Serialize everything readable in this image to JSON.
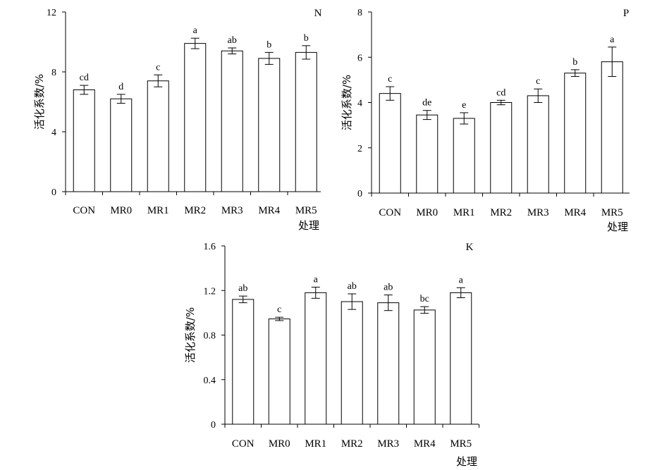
{
  "chart_data": [
    {
      "type": "bar",
      "panel_label": "N",
      "categories": [
        "CON",
        "MR0",
        "MR1",
        "MR2",
        "MR3",
        "MR4",
        "MR5"
      ],
      "values": [
        6.8,
        6.2,
        7.4,
        9.9,
        9.4,
        8.9,
        9.3
      ],
      "errors": [
        0.3,
        0.3,
        0.4,
        0.35,
        0.2,
        0.4,
        0.45
      ],
      "significance": [
        "cd",
        "d",
        "c",
        "a",
        "ab",
        "b",
        "b"
      ],
      "ylabel": "活化系数/%",
      "xlabel": "处理",
      "ylim": [
        0,
        12
      ],
      "yticks": [
        0,
        4,
        8,
        12
      ],
      "grid": false
    },
    {
      "type": "bar",
      "panel_label": "P",
      "categories": [
        "CON",
        "MR0",
        "MR1",
        "MR2",
        "MR3",
        "MR4",
        "MR5"
      ],
      "values": [
        4.4,
        3.45,
        3.3,
        4.0,
        4.3,
        5.3,
        5.8
      ],
      "errors": [
        0.3,
        0.2,
        0.25,
        0.1,
        0.3,
        0.15,
        0.65
      ],
      "significance": [
        "c",
        "de",
        "e",
        "cd",
        "c",
        "b",
        "a"
      ],
      "ylabel": "活化系数/%",
      "xlabel": "处理",
      "ylim": [
        0,
        8
      ],
      "yticks": [
        0,
        2,
        4,
        6,
        8
      ],
      "grid": false
    },
    {
      "type": "bar",
      "panel_label": "K",
      "categories": [
        "CON",
        "MR0",
        "MR1",
        "MR2",
        "MR3",
        "MR4",
        "MR5"
      ],
      "values": [
        1.12,
        0.945,
        1.18,
        1.1,
        1.09,
        1.025,
        1.18
      ],
      "errors": [
        0.03,
        0.015,
        0.05,
        0.07,
        0.07,
        0.03,
        0.045
      ],
      "significance": [
        "ab",
        "c",
        "a",
        "ab",
        "ab",
        "bc",
        "a"
      ],
      "ylabel": "活化系数/%",
      "xlabel": "处理",
      "ylim": [
        0,
        1.6
      ],
      "yticks": [
        "0",
        "0.4",
        "0.8",
        "1.2",
        "1.6"
      ],
      "grid": false
    }
  ]
}
